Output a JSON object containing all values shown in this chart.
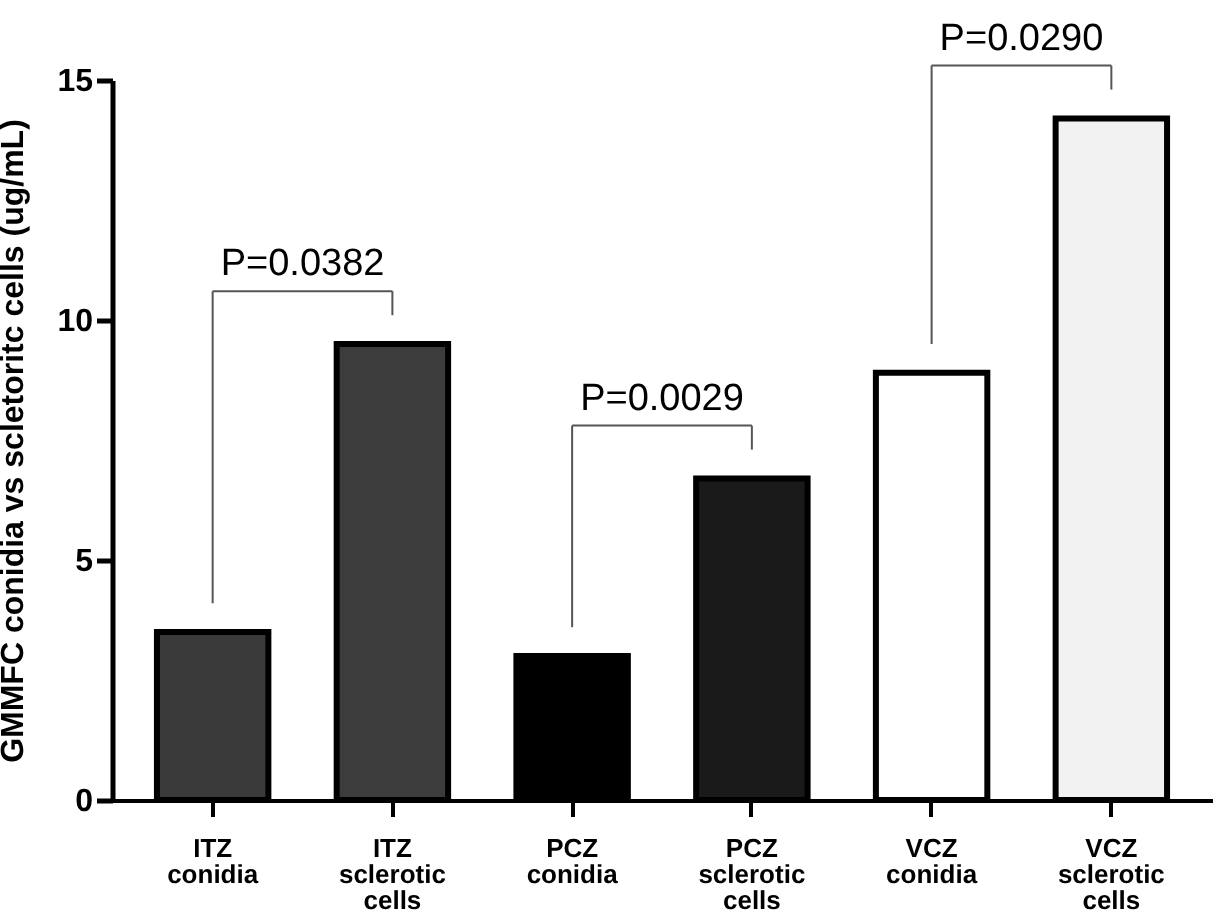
{
  "chart_data": {
    "type": "bar",
    "ylabel": "GMMFC  conidia vs scletoritc cells  (ug/mL)",
    "categories": [
      "ITZ conidia",
      "ITZ sclerotic cells",
      "PCZ conidia",
      "PCZ sclerotic cells",
      "VCZ conidia",
      "VCZ sclerotic cells"
    ],
    "values": [
      3.5,
      9.5,
      3.0,
      6.7,
      8.9,
      14.2
    ],
    "colors": [
      "#3a3a3a",
      "#3c3c3c",
      "#000000",
      "#1a1a1a",
      "#ffffff",
      "#f2f2f2"
    ],
    "ylim": [
      0,
      15
    ],
    "yticks": [
      0,
      5,
      10,
      15
    ],
    "annotations": [
      "P=0.0382",
      "P=0.0029",
      "P=0.0290"
    ]
  }
}
